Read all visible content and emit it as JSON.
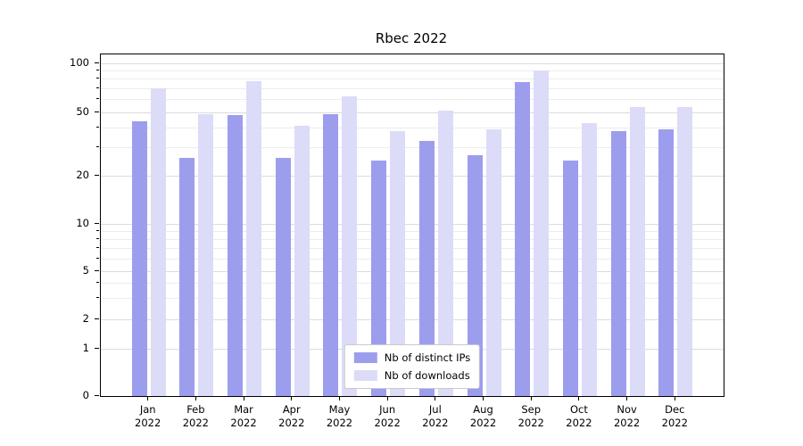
{
  "figure": {
    "background": "#ffffff",
    "frame_color": "#000000"
  },
  "chart_data": {
    "type": "bar",
    "title": "Rbec 2022",
    "categories": [
      "Jan 2022",
      "Feb 2022",
      "Mar 2022",
      "Apr 2022",
      "May 2022",
      "Jun 2022",
      "Jul 2022",
      "Aug 2022",
      "Sep 2022",
      "Oct 2022",
      "Nov 2022",
      "Dec 2022"
    ],
    "series": [
      {
        "name": "Nb of distinct IPs",
        "color": "#9d9dee",
        "values": [
          44,
          26,
          48,
          26,
          49,
          25,
          33,
          27,
          77,
          25,
          38,
          39
        ]
      },
      {
        "name": "Nb of downloads",
        "color": "#dcdcf8",
        "values": [
          70,
          49,
          78,
          41,
          63,
          38,
          51,
          39,
          90,
          43,
          54,
          54
        ]
      }
    ],
    "xlabel": "",
    "ylabel": "",
    "yscale": "symlog",
    "yticks": [
      100,
      50,
      20,
      10,
      5,
      2,
      1,
      0
    ],
    "ylim": [
      0,
      110
    ],
    "grid": true,
    "legend_position": "lower center"
  }
}
